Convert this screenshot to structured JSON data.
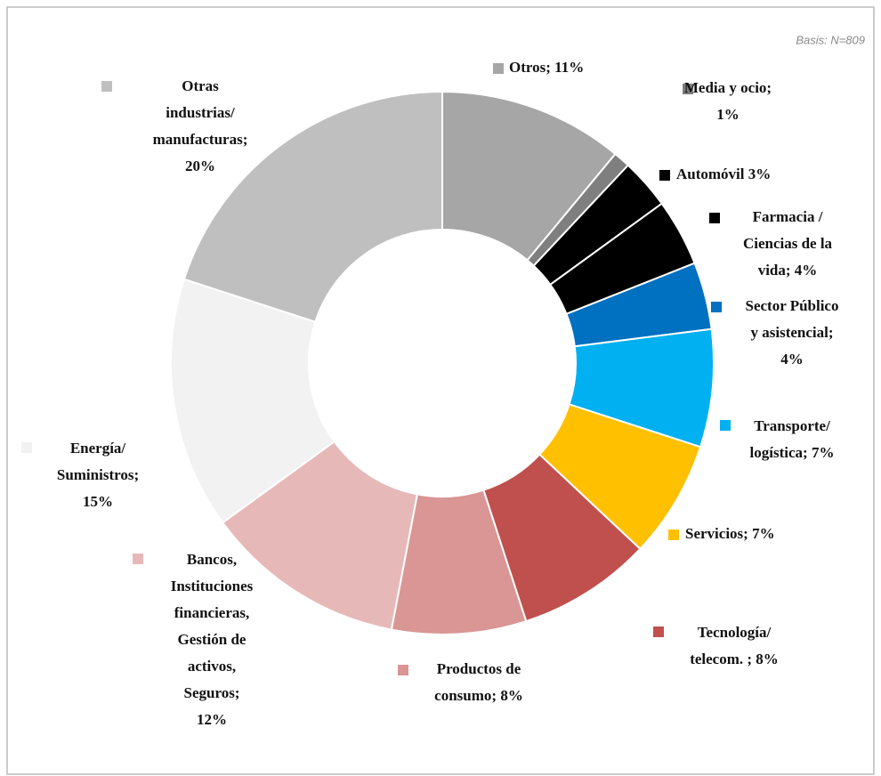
{
  "chart_data": {
    "type": "pie",
    "note": "Basis: N=809",
    "values": [
      11,
      1,
      3,
      4,
      4,
      7,
      7,
      8,
      8,
      12,
      15,
      20
    ],
    "value_labels": [
      [
        "Otros; 11%"
      ],
      [
        "Media y ocio;",
        "1%"
      ],
      [
        "Automóvil 3%"
      ],
      [
        "Farmacia /",
        "Ciencias de la",
        "vida; 4%"
      ],
      [
        "Sector Público",
        "y asistencial;",
        "4%"
      ],
      [
        "Transporte/",
        "logística; 7%"
      ],
      [
        "Servicios; 7%"
      ],
      [
        "Tecnología/",
        "telecom. ; 8%"
      ],
      [
        "Productos de",
        "consumo; 8%"
      ],
      [
        "Bancos,",
        "Instituciones",
        "financieras,",
        "Gestión de",
        "activos,",
        "Seguros;",
        "12%"
      ],
      [
        "Energía/",
        "Suministros;",
        "15%"
      ],
      [
        "Otras",
        "industrias/",
        "manufacturas;",
        "20%"
      ]
    ],
    "colors": [
      "#a6a6a6",
      "#7f7f7f",
      "#000000",
      "#000000",
      "#0070c0",
      "#00b0f0",
      "#ffc000",
      "#c0504d",
      "#d99694",
      "#e6b9b8",
      "#f2f2f2",
      "#bfbfbf"
    ],
    "donut": true
  }
}
